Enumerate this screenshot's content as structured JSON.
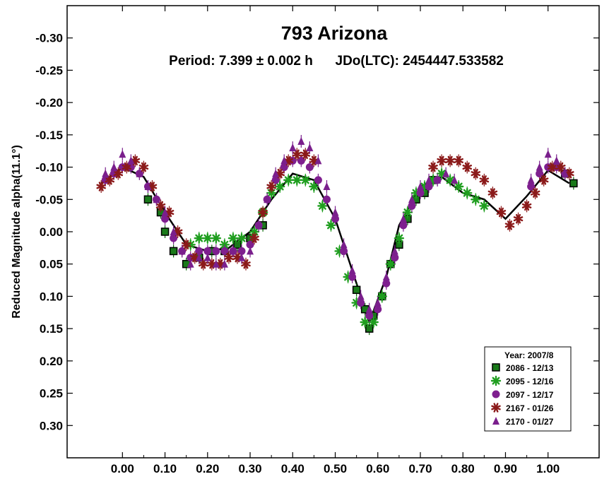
{
  "chart_data": {
    "type": "scatter",
    "title": "793 Arizona",
    "subtitle": "Period: 7.399 ± 0.002 h      JDo(LTC): 2454447.533582",
    "xlabel": "",
    "ylabel": "Reduced Magnitude alpha(11.1°)",
    "xlim": [
      -0.13,
      1.12
    ],
    "ylim": [
      0.35,
      -0.35
    ],
    "y_inverted": true,
    "grid": false,
    "x_ticks": [
      "0.00",
      "0.10",
      "0.20",
      "0.30",
      "0.40",
      "0.50",
      "0.60",
      "0.70",
      "0.80",
      "0.90",
      "1.00"
    ],
    "y_ticks": [
      "-0.30",
      "-0.25",
      "-0.20",
      "-0.15",
      "-0.10",
      "-0.05",
      "0.00",
      "0.05",
      "0.10",
      "0.15",
      "0.20",
      "0.25",
      "0.30"
    ],
    "legend": {
      "title": "Year: 2007/8",
      "placement": "bottom-right"
    },
    "fit_curve": {
      "color": "#000000",
      "x": [
        -0.05,
        0.0,
        0.05,
        0.1,
        0.15,
        0.2,
        0.25,
        0.3,
        0.35,
        0.4,
        0.45,
        0.5,
        0.55,
        0.58,
        0.62,
        0.65,
        0.7,
        0.75,
        0.8,
        0.85,
        0.9,
        0.95,
        1.0,
        1.05
      ],
      "y": [
        -0.075,
        -0.1,
        -0.085,
        -0.03,
        0.02,
        0.03,
        0.025,
        0.0,
        -0.05,
        -0.09,
        -0.08,
        -0.02,
        0.08,
        0.14,
        0.07,
        -0.01,
        -0.07,
        -0.085,
        -0.06,
        -0.05,
        -0.02,
        -0.055,
        -0.095,
        -0.075
      ]
    },
    "series": [
      {
        "name": "2086 - 12/13",
        "marker": "square",
        "color": "#0b6b0b",
        "x": [
          0.06,
          0.09,
          0.1,
          0.12,
          0.15,
          0.18,
          0.21,
          0.24,
          0.27,
          0.3,
          0.33,
          0.55,
          0.57,
          0.58,
          0.59,
          0.61,
          0.63,
          0.65,
          0.67,
          0.69,
          0.71,
          0.73,
          1.04,
          1.06
        ],
        "y": [
          -0.05,
          -0.03,
          0.0,
          0.03,
          0.05,
          0.04,
          0.03,
          0.03,
          0.02,
          0.01,
          -0.01,
          0.09,
          0.12,
          0.15,
          0.13,
          0.1,
          0.05,
          0.02,
          -0.02,
          -0.05,
          -0.06,
          -0.08,
          -0.09,
          -0.075
        ]
      },
      {
        "name": "2095 - 12/16",
        "marker": "asterisk",
        "color": "#1f9e1f",
        "x": [
          0.16,
          0.18,
          0.2,
          0.22,
          0.24,
          0.26,
          0.28,
          0.31,
          0.33,
          0.35,
          0.37,
          0.39,
          0.41,
          0.43,
          0.45,
          0.47,
          0.49,
          0.51,
          0.53,
          0.55,
          0.57,
          0.59,
          0.61,
          0.63,
          0.65,
          0.67,
          0.69,
          0.71,
          0.73,
          0.75,
          0.77,
          0.79,
          0.81,
          0.83,
          0.85
        ],
        "y": [
          0.02,
          0.01,
          0.01,
          0.01,
          0.02,
          0.01,
          0.01,
          0.0,
          -0.03,
          -0.06,
          -0.07,
          -0.08,
          -0.08,
          -0.08,
          -0.07,
          -0.04,
          -0.01,
          0.03,
          0.07,
          0.11,
          0.14,
          0.14,
          0.1,
          0.05,
          0.01,
          -0.03,
          -0.06,
          -0.07,
          -0.08,
          -0.09,
          -0.08,
          -0.07,
          -0.06,
          -0.05,
          -0.04
        ]
      },
      {
        "name": "2097 - 12/17",
        "marker": "circle",
        "color": "#7f1f8f",
        "x": [
          -0.04,
          -0.02,
          0.0,
          0.02,
          0.04,
          0.06,
          0.08,
          0.1,
          0.12,
          0.14,
          0.16,
          0.18,
          0.2,
          0.22,
          0.24,
          0.26,
          0.28,
          0.3,
          0.32,
          0.34,
          0.36,
          0.38,
          0.4,
          0.42,
          0.44,
          0.46,
          0.48,
          0.5,
          0.52,
          0.54,
          0.56,
          0.58,
          0.6,
          0.62,
          0.64,
          0.66,
          0.68,
          0.7,
          0.72,
          0.74,
          0.96,
          0.98,
          1.0,
          1.02,
          1.04
        ],
        "y": [
          -0.08,
          -0.09,
          -0.1,
          -0.1,
          -0.09,
          -0.07,
          -0.05,
          -0.02,
          0.01,
          0.03,
          0.04,
          0.03,
          0.03,
          0.03,
          0.03,
          0.03,
          0.03,
          0.02,
          -0.01,
          -0.05,
          -0.08,
          -0.1,
          -0.11,
          -0.11,
          -0.1,
          -0.08,
          -0.05,
          -0.02,
          0.03,
          0.07,
          0.11,
          0.13,
          0.12,
          0.08,
          0.04,
          -0.01,
          -0.04,
          -0.06,
          -0.07,
          -0.08,
          -0.07,
          -0.09,
          -0.1,
          -0.1,
          -0.09
        ]
      },
      {
        "name": "2167 - 01/26",
        "marker": "star",
        "color": "#8b1a1a",
        "x": [
          -0.05,
          -0.03,
          -0.01,
          0.01,
          0.03,
          0.05,
          0.07,
          0.09,
          0.11,
          0.13,
          0.15,
          0.17,
          0.19,
          0.21,
          0.23,
          0.25,
          0.27,
          0.29,
          0.31,
          0.33,
          0.35,
          0.37,
          0.39,
          0.41,
          0.43,
          0.45,
          0.73,
          0.75,
          0.77,
          0.79,
          0.81,
          0.83,
          0.85,
          0.87,
          0.89,
          0.91,
          0.93,
          0.95,
          0.97,
          0.99,
          1.01,
          1.03,
          1.05
        ],
        "y": [
          -0.07,
          -0.08,
          -0.09,
          -0.1,
          -0.11,
          -0.1,
          -0.07,
          -0.04,
          -0.03,
          0.0,
          0.02,
          0.04,
          0.05,
          0.05,
          0.05,
          0.04,
          0.04,
          0.05,
          0.01,
          -0.03,
          -0.07,
          -0.09,
          -0.11,
          -0.12,
          -0.12,
          -0.11,
          -0.1,
          -0.11,
          -0.11,
          -0.11,
          -0.1,
          -0.09,
          -0.08,
          -0.06,
          -0.03,
          -0.01,
          -0.02,
          -0.04,
          -0.06,
          -0.08,
          -0.1,
          -0.1,
          -0.09
        ]
      },
      {
        "name": "2170 - 01/27",
        "marker": "triangle",
        "color": "#7a1f8c",
        "x": [
          -0.04,
          -0.02,
          0.0,
          0.02,
          0.04,
          0.06,
          0.08,
          0.1,
          0.12,
          0.14,
          0.16,
          0.18,
          0.2,
          0.22,
          0.24,
          0.26,
          0.28,
          0.3,
          0.32,
          0.34,
          0.36,
          0.38,
          0.4,
          0.42,
          0.44,
          0.46,
          0.48,
          0.5,
          0.52,
          0.54,
          0.56,
          0.58,
          0.6,
          0.62,
          0.64,
          0.66,
          0.68,
          0.7,
          0.72,
          0.74,
          0.76,
          0.78,
          0.96,
          0.98,
          1.0,
          1.02,
          1.04
        ],
        "y": [
          -0.09,
          -0.1,
          -0.12,
          -0.11,
          -0.09,
          -0.07,
          -0.05,
          -0.03,
          0.0,
          0.03,
          0.05,
          0.04,
          0.04,
          0.05,
          0.05,
          0.03,
          0.04,
          0.03,
          -0.01,
          -0.05,
          -0.09,
          -0.11,
          -0.13,
          -0.14,
          -0.13,
          -0.11,
          -0.07,
          -0.03,
          0.02,
          0.06,
          0.1,
          0.12,
          0.11,
          0.07,
          0.03,
          -0.02,
          -0.05,
          -0.07,
          -0.08,
          -0.08,
          -0.09,
          -0.08,
          -0.08,
          -0.1,
          -0.12,
          -0.11,
          -0.09
        ]
      }
    ]
  }
}
